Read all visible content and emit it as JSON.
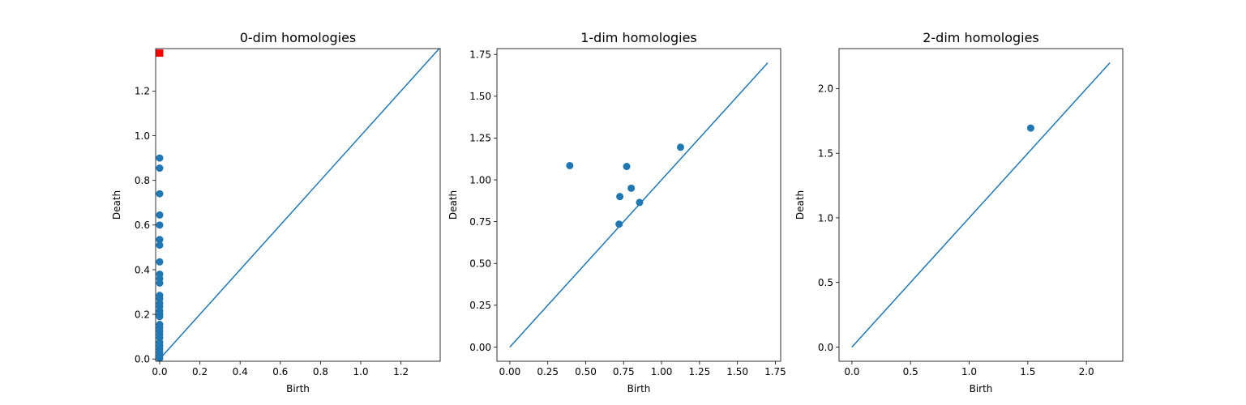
{
  "chart_data": [
    {
      "type": "scatter",
      "title": "0-dim homologies",
      "xlabel": "Birth",
      "ylabel": "Death",
      "xlim": [
        -0.02,
        1.395
      ],
      "ylim": [
        -0.01,
        1.39
      ],
      "xticks": [
        0.0,
        0.2,
        0.4,
        0.6,
        0.8,
        1.0,
        1.2
      ],
      "xtick_labels": [
        "0.0",
        "0.2",
        "0.4",
        "0.6",
        "0.8",
        "1.0",
        "1.2"
      ],
      "yticks": [
        0.0,
        0.2,
        0.4,
        0.6,
        0.8,
        1.0,
        1.2
      ],
      "ytick_labels": [
        "0.0",
        "0.2",
        "0.4",
        "0.6",
        "0.8",
        "1.0",
        "1.2"
      ],
      "diagonal": [
        0.0,
        1.395
      ],
      "color": "#1f77b4",
      "points": [
        [
          0,
          0.9
        ],
        [
          0,
          0.855
        ],
        [
          0,
          0.74
        ],
        [
          0,
          0.645
        ],
        [
          0,
          0.6
        ],
        [
          0,
          0.535
        ],
        [
          0,
          0.51
        ],
        [
          0,
          0.435
        ],
        [
          0,
          0.38
        ],
        [
          0,
          0.36
        ],
        [
          0,
          0.34
        ],
        [
          0,
          0.285
        ],
        [
          0,
          0.27
        ],
        [
          0,
          0.25
        ],
        [
          0,
          0.235
        ],
        [
          0,
          0.215
        ],
        [
          0,
          0.2
        ],
        [
          0,
          0.19
        ],
        [
          0,
          0.155
        ],
        [
          0,
          0.14
        ],
        [
          0,
          0.125
        ],
        [
          0,
          0.11
        ],
        [
          0,
          0.095
        ],
        [
          0,
          0.075
        ],
        [
          0,
          0.06
        ],
        [
          0,
          0.045
        ],
        [
          0,
          0.03
        ],
        [
          0,
          0.015
        ],
        [
          0,
          0.003
        ]
      ],
      "infinite_points": [
        [
          0,
          1.37
        ]
      ],
      "infinite_color": "#ff0000"
    },
    {
      "type": "scatter",
      "title": "1-dim homologies",
      "xlabel": "Birth",
      "ylabel": "Death",
      "xlim": [
        -0.085,
        1.785
      ],
      "ylim": [
        -0.085,
        1.785
      ],
      "xticks": [
        0.0,
        0.25,
        0.5,
        0.75,
        1.0,
        1.25,
        1.5,
        1.75
      ],
      "xtick_labels": [
        "0.00",
        "0.25",
        "0.50",
        "0.75",
        "1.00",
        "1.25",
        "1.50",
        "1.75"
      ],
      "yticks": [
        0.0,
        0.25,
        0.5,
        0.75,
        1.0,
        1.25,
        1.5,
        1.75
      ],
      "ytick_labels": [
        "0.00",
        "0.25",
        "0.50",
        "0.75",
        "1.00",
        "1.25",
        "1.50",
        "1.75"
      ],
      "diagonal": [
        0.0,
        1.7
      ],
      "color": "#1f77b4",
      "points": [
        [
          0.395,
          1.085
        ],
        [
          0.77,
          1.08
        ],
        [
          0.725,
          0.9
        ],
        [
          0.8,
          0.95
        ],
        [
          0.855,
          0.865
        ],
        [
          0.72,
          0.735
        ],
        [
          1.125,
          1.195
        ]
      ]
    },
    {
      "type": "scatter",
      "title": "2-dim homologies",
      "xlabel": "Birth",
      "ylabel": "Death",
      "xlim": [
        -0.11,
        2.31
      ],
      "ylim": [
        -0.11,
        2.31
      ],
      "xticks": [
        0.0,
        0.5,
        1.0,
        1.5,
        2.0
      ],
      "xtick_labels": [
        "0.0",
        "0.5",
        "1.0",
        "1.5",
        "2.0"
      ],
      "yticks": [
        0.0,
        0.5,
        1.0,
        1.5,
        2.0
      ],
      "ytick_labels": [
        "0.0",
        "0.5",
        "1.0",
        "1.5",
        "2.0"
      ],
      "diagonal": [
        0.0,
        2.2
      ],
      "color": "#1f77b4",
      "points": [
        [
          1.525,
          1.695
        ]
      ]
    }
  ]
}
